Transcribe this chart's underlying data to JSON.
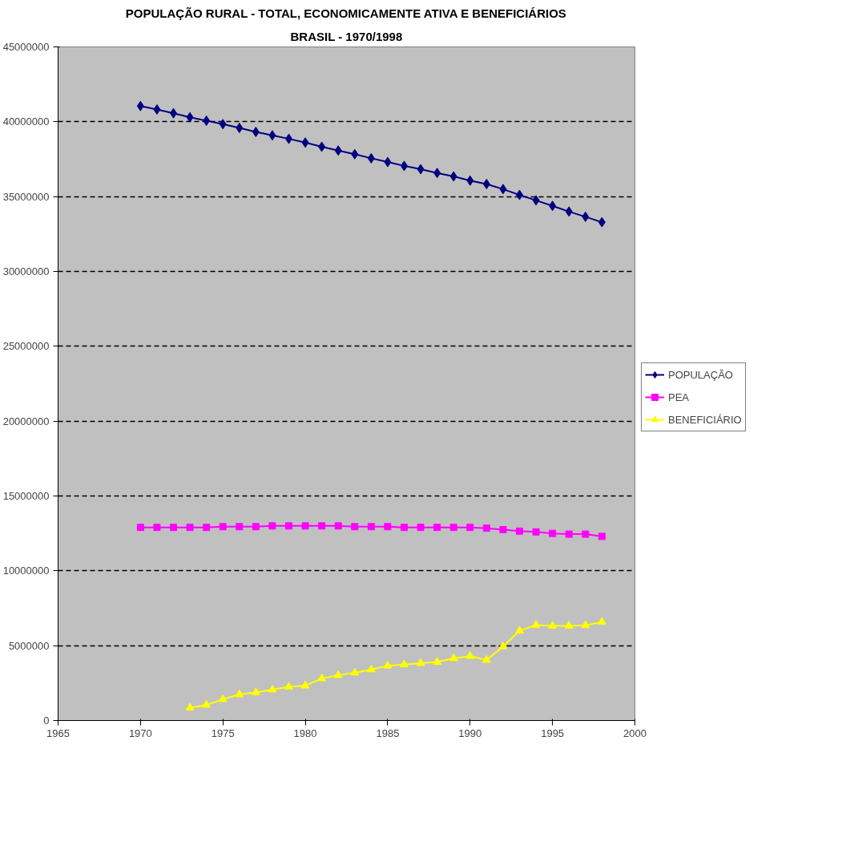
{
  "chart_data": {
    "type": "line",
    "title": "POPULAÇÃO RURAL - TOTAL, ECONOMICAMENTE ATIVA E BENEFICIÁRIOS",
    "subtitle": "BRASIL - 1970/1998",
    "xlim": [
      1965,
      2000
    ],
    "xticks": [
      1965,
      1970,
      1975,
      1980,
      1985,
      1990,
      1995,
      2000
    ],
    "ylim": [
      0,
      45000000
    ],
    "yticks": [
      0,
      5000000,
      10000000,
      15000000,
      20000000,
      25000000,
      30000000,
      35000000,
      40000000,
      45000000
    ],
    "grid": "y",
    "legend": "right",
    "line_style": "solid",
    "series": [
      {
        "name": "POPULAÇÃO",
        "color": "#000080",
        "marker": "diamond",
        "x": [
          1970,
          1971,
          1972,
          1973,
          1974,
          1975,
          1976,
          1977,
          1978,
          1979,
          1980,
          1981,
          1982,
          1983,
          1984,
          1985,
          1986,
          1987,
          1988,
          1989,
          1990,
          1991,
          1992,
          1993,
          1994,
          1995,
          1996,
          1997,
          1998
        ],
        "values": [
          41050000,
          40820000,
          40570000,
          40300000,
          40070000,
          39840000,
          39590000,
          39320000,
          39090000,
          38860000,
          38610000,
          38330000,
          38080000,
          37830000,
          37560000,
          37310000,
          37050000,
          36830000,
          36580000,
          36350000,
          36070000,
          35840000,
          35500000,
          35110000,
          34750000,
          34380000,
          34000000,
          33650000,
          33290000
        ]
      },
      {
        "name": "PEA",
        "color": "#ff00ff",
        "marker": "square",
        "x": [
          1970,
          1971,
          1972,
          1973,
          1974,
          1975,
          1976,
          1977,
          1978,
          1979,
          1980,
          1981,
          1982,
          1983,
          1984,
          1985,
          1986,
          1987,
          1988,
          1989,
          1990,
          1991,
          1992,
          1993,
          1994,
          1995,
          1996,
          1997,
          1998
        ],
        "values": [
          12900000,
          12900000,
          12900000,
          12900000,
          12900000,
          12950000,
          12950000,
          12950000,
          13000000,
          13000000,
          13000000,
          13000000,
          13000000,
          12950000,
          12950000,
          12950000,
          12900000,
          12900000,
          12900000,
          12900000,
          12900000,
          12850000,
          12750000,
          12650000,
          12600000,
          12500000,
          12450000,
          12450000,
          12300000
        ]
      },
      {
        "name": "BENEFICIÁRIO",
        "color": "#ffff00",
        "marker": "triangle",
        "x": [
          1973,
          1974,
          1975,
          1976,
          1977,
          1978,
          1979,
          1980,
          1981,
          1982,
          1983,
          1984,
          1985,
          1986,
          1987,
          1988,
          1989,
          1990,
          1991,
          1992,
          1993,
          1994,
          1995,
          1996,
          1997,
          1998
        ],
        "values": [
          850000,
          1040000,
          1420000,
          1740000,
          1870000,
          2060000,
          2250000,
          2320000,
          2810000,
          3020000,
          3190000,
          3400000,
          3660000,
          3740000,
          3830000,
          3910000,
          4150000,
          4300000,
          4040000,
          4940000,
          6000000,
          6380000,
          6320000,
          6320000,
          6360000,
          6580000
        ]
      }
    ]
  }
}
